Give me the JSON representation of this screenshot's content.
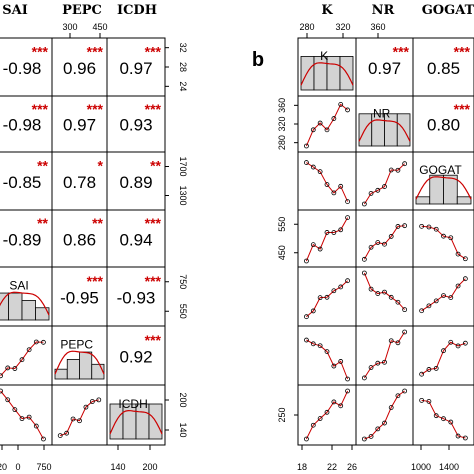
{
  "chart_data": [
    {
      "type": "scatter-matrix",
      "panel_label": "",
      "variables": [
        "SAI",
        "PEPC",
        "ICDH"
      ],
      "top_tick_labels": [
        [
          "300",
          "450"
        ]
      ],
      "right_tick_labels": [
        [
          "32",
          "28",
          "24"
        ],
        [],
        [
          "1700",
          "1300"
        ],
        [],
        [
          "750",
          "550"
        ],
        [],
        [
          "200",
          "140"
        ]
      ],
      "bottom_tick_labels": [
        [
          "20",
          "0",
          "750"
        ],
        [],
        [
          "140",
          "200"
        ]
      ],
      "rows": [
        {
          "cells": [
            {
              "r": "-0.98",
              "sig": "***"
            },
            {
              "r": "0.96",
              "sig": "***"
            },
            {
              "r": "0.97",
              "sig": "***"
            }
          ]
        },
        {
          "cells": [
            {
              "r": "-0.98",
              "sig": "***"
            },
            {
              "r": "0.97",
              "sig": "***"
            },
            {
              "r": "0.93",
              "sig": "***"
            }
          ]
        },
        {
          "cells": [
            {
              "r": "-0.85",
              "sig": "**"
            },
            {
              "r": "0.78",
              "sig": "*"
            },
            {
              "r": "0.89",
              "sig": "**"
            }
          ]
        },
        {
          "cells": [
            {
              "r": "-0.89",
              "sig": "**"
            },
            {
              "r": "0.86",
              "sig": "**"
            },
            {
              "r": "0.94",
              "sig": "***"
            }
          ]
        },
        {
          "cells": [
            {
              "diag": "SAI"
            },
            {
              "r": "-0.95",
              "sig": "***"
            },
            {
              "r": "-0.93",
              "sig": "***"
            }
          ]
        },
        {
          "cells": [
            {
              "scatter": true
            },
            {
              "diag": "PEPC"
            },
            {
              "r": "0.92",
              "sig": "***"
            }
          ]
        },
        {
          "cells": [
            {
              "scatter": true
            },
            {
              "scatter": true
            },
            {
              "diag": "ICDH"
            }
          ]
        }
      ]
    },
    {
      "type": "scatter-matrix",
      "panel_label": "b",
      "variables": [
        "K",
        "NR",
        "GOGAT"
      ],
      "top_tick_labels": [
        [
          "280",
          "320",
          "360"
        ]
      ],
      "left_tick_labels": [
        [],
        [
          "360",
          "320",
          "280"
        ],
        [],
        [
          "550",
          "450"
        ],
        [],
        [],
        [
          "250"
        ]
      ],
      "bottom_tick_labels": [
        [
          "18",
          "22",
          "26"
        ],
        [],
        [
          "1000",
          "1400"
        ]
      ],
      "rows": [
        {
          "cells": [
            {
              "diag": "K"
            },
            {
              "r": "0.97",
              "sig": "***"
            },
            {
              "r": "0.85",
              "sig": "***"
            }
          ]
        },
        {
          "cells": [
            {
              "scatter": true
            },
            {
              "diag": "NR"
            },
            {
              "r": "0.80",
              "sig": "***"
            }
          ]
        },
        {
          "cells": [
            {
              "scatter": true
            },
            {
              "scatter": true
            },
            {
              "diag": "GOGAT"
            }
          ]
        },
        {
          "cells": [
            {
              "scatter": true
            },
            {
              "scatter": true
            },
            {
              "scatter": true
            }
          ]
        },
        {
          "cells": [
            {
              "scatter": true
            },
            {
              "scatter": true
            },
            {
              "scatter": true
            }
          ]
        },
        {
          "cells": [
            {
              "scatter": true
            },
            {
              "scatter": true
            },
            {
              "scatter": true
            }
          ]
        },
        {
          "cells": [
            {
              "scatter": true
            },
            {
              "scatter": true
            },
            {
              "scatter": true
            }
          ]
        }
      ]
    }
  ]
}
